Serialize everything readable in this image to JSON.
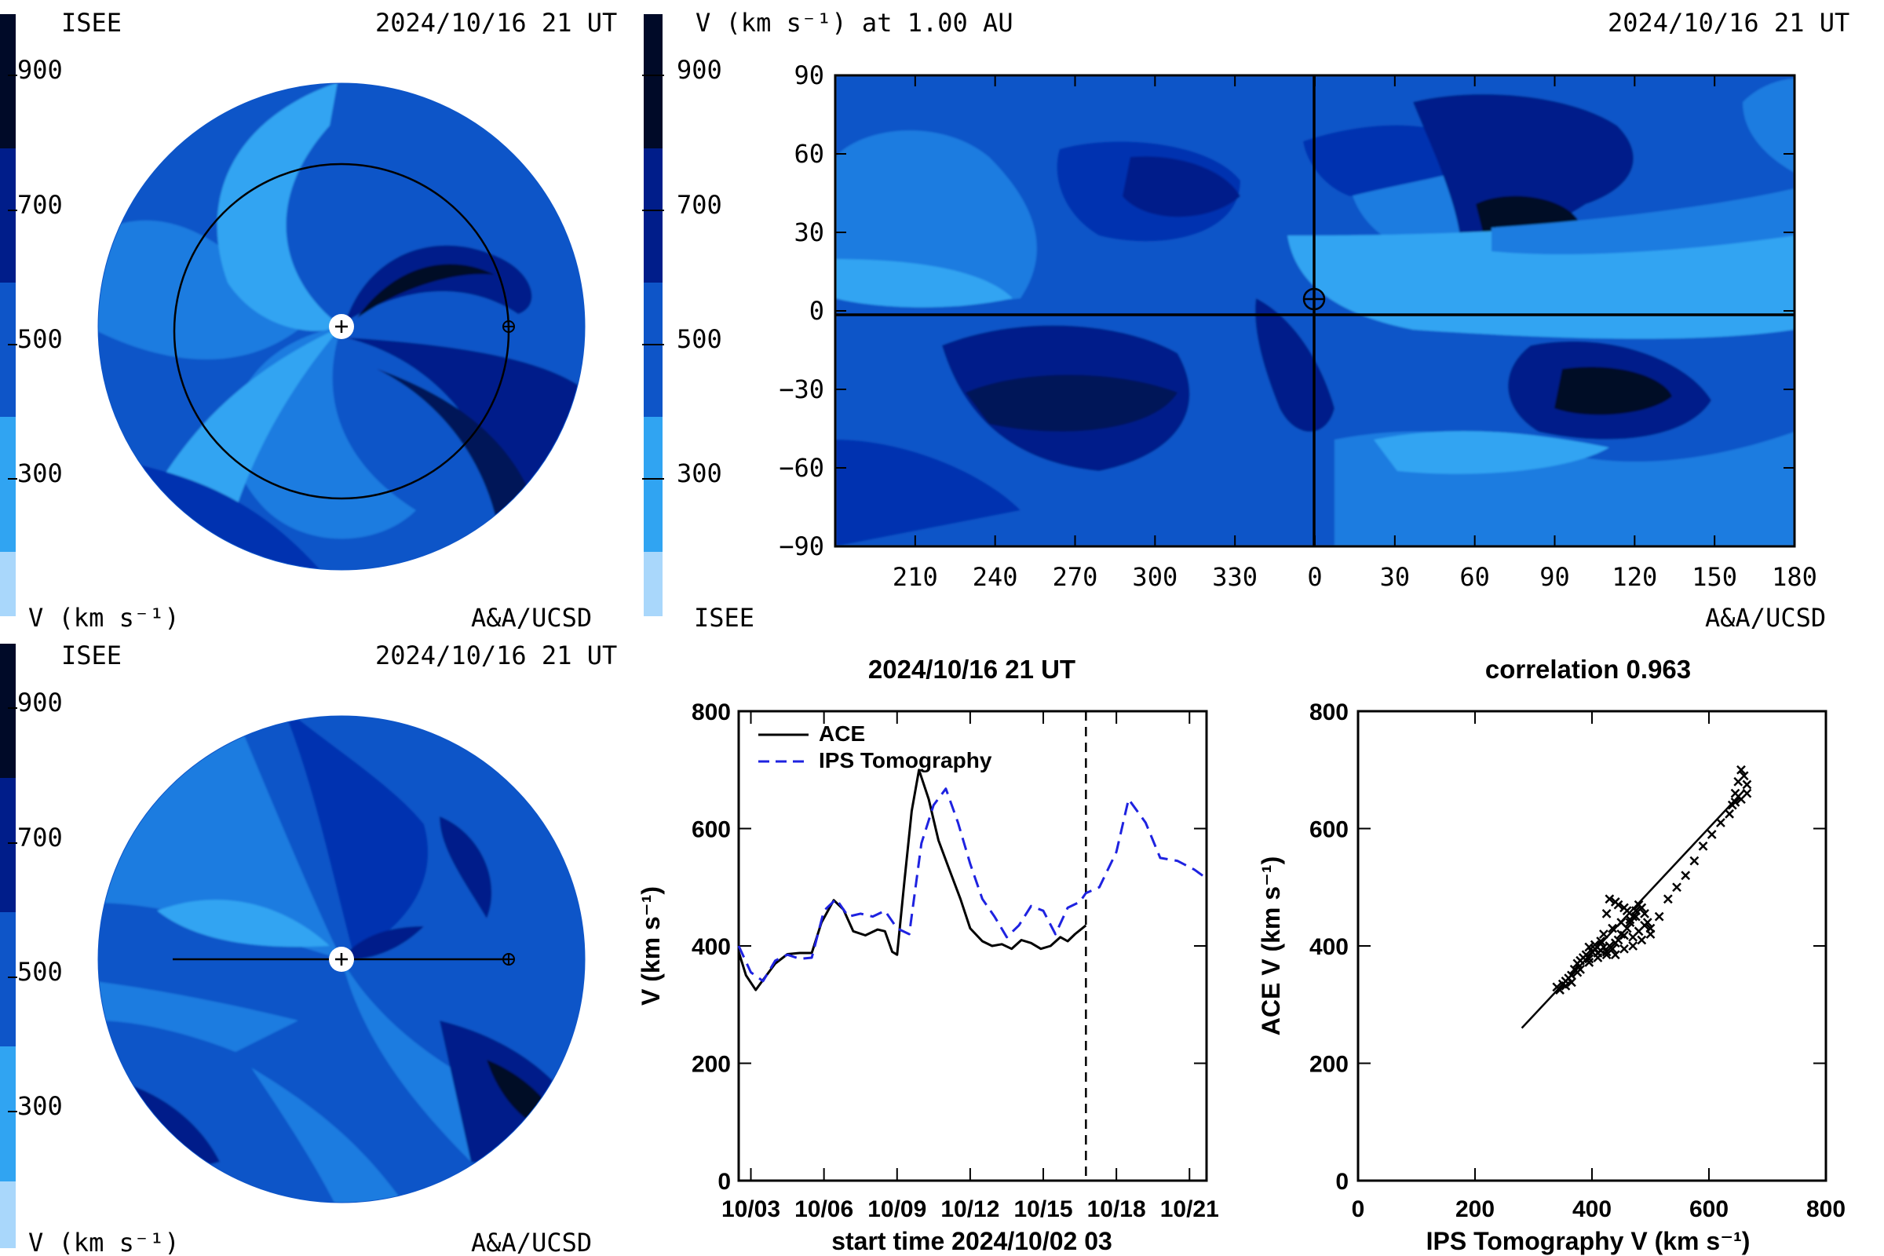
{
  "colors": {
    "v900": "#000a28",
    "v800": "#001258",
    "v700": "#001d8a",
    "v600": "#0432b0",
    "v500": "#0e55c8",
    "v400": "#1a7be0",
    "v300": "#30a4f2",
    "v200": "#a9d7fb",
    "ace_line": "#000000",
    "ips_line": "#1e22e0"
  },
  "colorbar": {
    "ticks": [
      "900",
      "700",
      "500",
      "300"
    ]
  },
  "panels": {
    "top_left": {
      "label_left": "ISEE",
      "label_right": "2024/10/16 21 UT",
      "unit": "V (km s⁻¹)",
      "credit": "A&A/UCSD"
    },
    "top_right": {
      "title": "V (km s⁻¹) at 1.00 AU",
      "time": "2024/10/16 21 UT",
      "label_bottom_left": "ISEE",
      "credit": "A&A/UCSD",
      "yticks": [
        "90",
        "60",
        "30",
        "0",
        "−30",
        "−60",
        "−90"
      ],
      "xticks": [
        "210",
        "240",
        "270",
        "300",
        "330",
        "0",
        "30",
        "60",
        "90",
        "120",
        "150",
        "180"
      ]
    },
    "bottom_left": {
      "label_left": "ISEE",
      "label_right": "2024/10/16 21 UT",
      "unit": "V (km s⁻¹)",
      "credit": "A&A/UCSD"
    }
  },
  "chart_data": [
    {
      "type": "line",
      "title": "2024/10/16 21 UT",
      "xlabel": "start time 2024/10/02 03",
      "ylabel": "V (km s⁻¹)",
      "ylim": [
        0,
        800
      ],
      "xlim": [
        0.5,
        19.7
      ],
      "xticks": [
        {
          "x": 1,
          "label": "10/03"
        },
        {
          "x": 4,
          "label": "10/06"
        },
        {
          "x": 7,
          "label": "10/09"
        },
        {
          "x": 10,
          "label": "10/12"
        },
        {
          "x": 13,
          "label": "10/15"
        },
        {
          "x": 16,
          "label": "10/18"
        },
        {
          "x": 19,
          "label": "10/21"
        }
      ],
      "yticks": [
        "0",
        "200",
        "400",
        "600",
        "800"
      ],
      "vline_x": 14.75,
      "legend": "top-left",
      "series": [
        {
          "name": "ACE",
          "style": "solid",
          "x": [
            0.5,
            0.8,
            1.2,
            1.5,
            2.0,
            2.5,
            3.0,
            3.5,
            3.9,
            4.4,
            4.8,
            5.2,
            5.7,
            6.2,
            6.5,
            6.8,
            7.0,
            7.3,
            7.6,
            7.9,
            8.3,
            8.7,
            9.1,
            9.6,
            10.0,
            10.5,
            10.9,
            11.3,
            11.7,
            12.1,
            12.5,
            12.9,
            13.3,
            13.7,
            14.0,
            14.3,
            14.75
          ],
          "y": [
            390,
            350,
            325,
            342,
            370,
            386,
            388,
            388,
            440,
            478,
            462,
            425,
            418,
            428,
            425,
            390,
            385,
            510,
            630,
            700,
            650,
            580,
            535,
            480,
            430,
            408,
            400,
            403,
            395,
            410,
            405,
            395,
            400,
            415,
            408,
            420,
            435
          ]
        },
        {
          "name": "IPS Tomography",
          "style": "dashed",
          "x": [
            0.5,
            1.0,
            1.5,
            2.0,
            2.5,
            3.0,
            3.5,
            4.0,
            4.5,
            5.0,
            5.5,
            6.0,
            6.5,
            7.0,
            7.5,
            8.0,
            8.5,
            9.0,
            9.5,
            10.0,
            10.5,
            11.0,
            11.5,
            12.0,
            12.5,
            13.0,
            13.5,
            14.0,
            14.5,
            14.75,
            15.3,
            16.0,
            16.5,
            17.2,
            17.8,
            18.5,
            19.2,
            19.7
          ],
          "y": [
            400,
            355,
            340,
            375,
            385,
            378,
            380,
            460,
            480,
            450,
            455,
            450,
            460,
            430,
            420,
            575,
            640,
            668,
            610,
            540,
            480,
            450,
            415,
            435,
            468,
            460,
            420,
            465,
            475,
            490,
            500,
            560,
            650,
            610,
            550,
            545,
            530,
            515
          ]
        }
      ]
    },
    {
      "type": "scatter",
      "title": "correlation 0.963",
      "xlabel": "IPS Tomography V (km s⁻¹)",
      "ylabel": "ACE V (km s⁻¹)",
      "xlim": [
        0,
        800
      ],
      "ylim": [
        0,
        800
      ],
      "xticks": [
        "0",
        "200",
        "400",
        "600",
        "800"
      ],
      "yticks": [
        "0",
        "200",
        "400",
        "600",
        "800"
      ],
      "fit_line": {
        "x": [
          280,
          660
        ],
        "y": [
          260,
          665
        ]
      },
      "points": {
        "x": [
          340,
          345,
          350,
          355,
          360,
          365,
          370,
          375,
          380,
          385,
          390,
          395,
          400,
          405,
          410,
          415,
          420,
          425,
          430,
          435,
          440,
          445,
          450,
          455,
          460,
          465,
          470,
          475,
          480,
          485,
          490,
          495,
          500,
          380,
          395,
          410,
          425,
          440,
          455,
          470,
          485,
          500,
          515,
          530,
          545,
          560,
          575,
          590,
          605,
          620,
          635,
          640,
          645,
          650,
          655,
          660,
          665,
          665,
          655,
          645,
          430,
          445,
          460,
          475,
          420,
          435,
          450,
          465,
          480,
          395,
          405,
          415,
          355,
          365,
          375,
          470,
          490,
          455,
          440,
          425
        ],
        "y": [
          330,
          325,
          335,
          340,
          345,
          350,
          360,
          370,
          375,
          380,
          385,
          378,
          390,
          395,
          388,
          392,
          398,
          385,
          400,
          395,
          405,
          410,
          420,
          418,
          430,
          440,
          450,
          460,
          470,
          465,
          455,
          440,
          430,
          360,
          372,
          380,
          390,
          385,
          395,
          400,
          410,
          420,
          450,
          480,
          500,
          520,
          545,
          570,
          590,
          610,
          625,
          640,
          660,
          680,
          700,
          690,
          675,
          660,
          650,
          645,
          480,
          470,
          460,
          450,
          420,
          430,
          440,
          445,
          425,
          398,
          402,
          408,
          332,
          338,
          355,
          415,
          435,
          465,
          475,
          455
        ]
      }
    }
  ]
}
